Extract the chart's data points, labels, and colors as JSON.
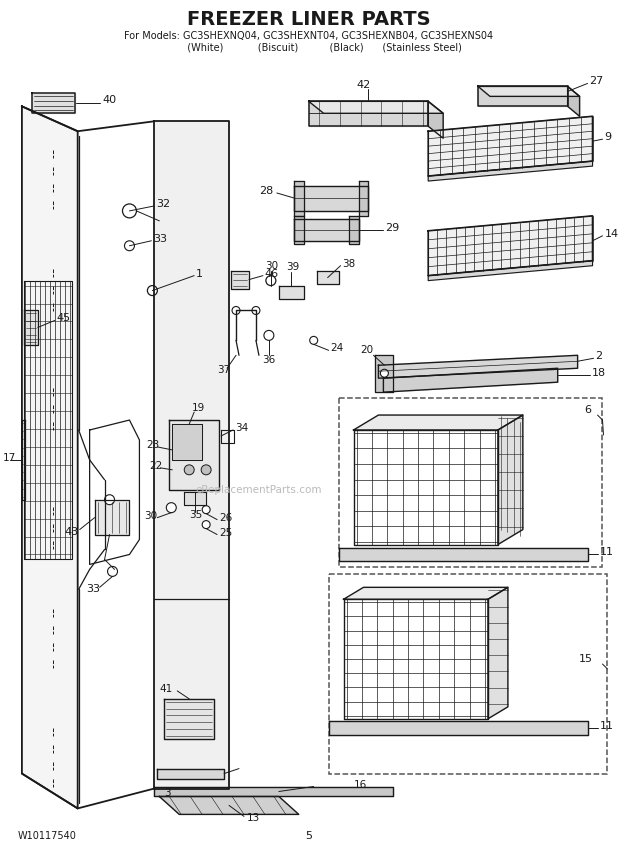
{
  "title": "FREEZER LINER PARTS",
  "subtitle_line1": "For Models: GC3SHEXNQ04, GC3SHEXNT04, GC3SHEXNB04, GC3SHEXNS04",
  "subtitle_line2": "          (White)           (Biscuit)          (Black)      (Stainless Steel)",
  "footer_left": "W10117540",
  "footer_center": "5",
  "bg_color": "#ffffff",
  "lc": "#1a1a1a",
  "tc": "#1a1a1a",
  "watermark": "eReplacementParts.com"
}
